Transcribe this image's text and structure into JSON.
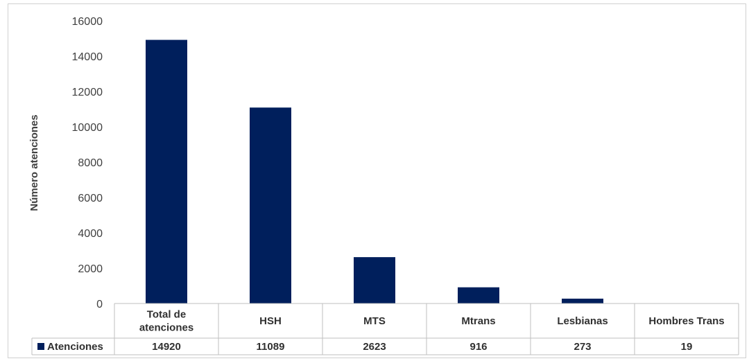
{
  "chart_data": {
    "type": "bar",
    "ylabel": "Número atenciones",
    "xlabel": "",
    "ylim": [
      0,
      16000
    ],
    "yticks": [
      0,
      2000,
      4000,
      6000,
      8000,
      10000,
      12000,
      14000,
      16000
    ],
    "categories": [
      [
        "Total de",
        "atenciones"
      ],
      [
        "HSH"
      ],
      [
        "MTS"
      ],
      [
        "Mtrans"
      ],
      [
        "Lesbianas"
      ],
      [
        "Hombres Trans"
      ]
    ],
    "series": [
      {
        "name": "Atenciones",
        "values": [
          14920,
          11089,
          2623,
          916,
          273,
          19
        ]
      }
    ],
    "data_table": true,
    "grid": false,
    "legend": "data-table-left",
    "colors": {
      "bar": "#001f5c",
      "axis": "#bfbfbf",
      "table_border": "#bfbfbf"
    }
  }
}
